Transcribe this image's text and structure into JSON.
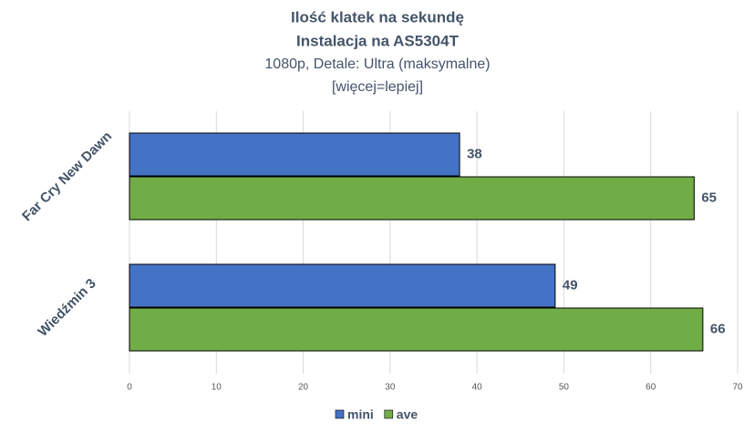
{
  "chart_data": {
    "type": "hbar",
    "title": [
      "Ilość klatek na sekundę",
      "Instalacja na AS5304T"
    ],
    "subtitle": [
      "1080p, Detale: Ultra (maksymalne)",
      "[więcej=lepiej]"
    ],
    "categories": [
      "Far Cry New Dawn",
      "Wiedźmin 3"
    ],
    "series": [
      {
        "name": "mini",
        "color": "#4472c4",
        "values": [
          38,
          49
        ]
      },
      {
        "name": "ave",
        "color": "#70ad47",
        "values": [
          65,
          66
        ]
      }
    ],
    "xlim": [
      0,
      70
    ],
    "xticks": [
      0,
      10,
      20,
      30,
      40,
      50,
      60,
      70
    ],
    "grid": true,
    "legend": "bottom"
  }
}
